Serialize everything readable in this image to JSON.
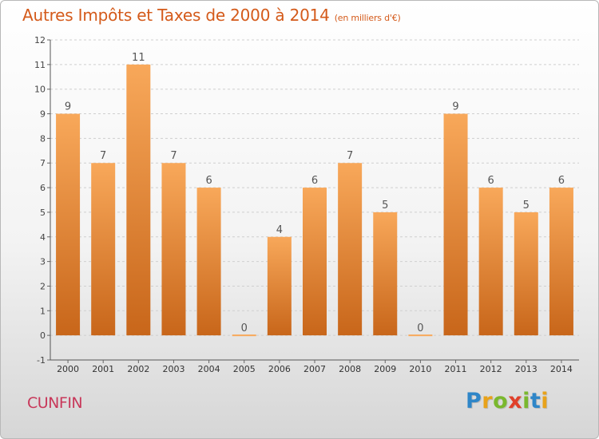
{
  "header": {
    "title": "Autres Impôts et Taxes de 2000 à 2014",
    "subtitle": "(en milliers d'€)"
  },
  "footer": {
    "commune": "CUNFIN",
    "logo_text": "Proxiti",
    "logo_letters": [
      {
        "ch": "P",
        "color": "#2f86c8"
      },
      {
        "ch": "r",
        "color": "#e8a21a"
      },
      {
        "ch": "o",
        "color": "#7ab82e"
      },
      {
        "ch": "x",
        "color": "#e0402a"
      },
      {
        "ch": "i",
        "color": "#7ab82e"
      },
      {
        "ch": "t",
        "color": "#2f86c8"
      },
      {
        "ch": "i",
        "color": "#e8a21a"
      }
    ]
  },
  "colors": {
    "bar_light": "#f8a85a",
    "bar_dark": "#c8661a",
    "title": "#d45a1a",
    "commune": "#c8385a"
  },
  "chart_data": {
    "type": "bar",
    "categories": [
      "2000",
      "2001",
      "2002",
      "2003",
      "2004",
      "2005",
      "2006",
      "2007",
      "2008",
      "2009",
      "2010",
      "2011",
      "2012",
      "2013",
      "2014"
    ],
    "values": [
      9,
      7,
      11,
      7,
      6,
      0,
      4,
      6,
      7,
      5,
      0,
      9,
      6,
      5,
      6
    ],
    "data_labels": [
      "9",
      "7",
      "11",
      "7",
      "6",
      "0",
      "4",
      "6",
      "7",
      "5",
      "0",
      "9",
      "6",
      "5",
      "6"
    ],
    "title": "Autres Impôts et Taxes de 2000 à 2014",
    "subtitle": "(en milliers d'€)",
    "xlabel": "",
    "ylabel": "",
    "ylim": [
      -1,
      12
    ],
    "yticks": [
      -1,
      0,
      1,
      2,
      3,
      4,
      5,
      6,
      7,
      8,
      9,
      10,
      11,
      12
    ],
    "ytick_labels": [
      "-1",
      "0",
      "1",
      "2",
      "3",
      "4",
      "5",
      "6",
      "7",
      "8",
      "9",
      "10",
      "11",
      "12"
    ],
    "grid": "horizontal dashed"
  }
}
